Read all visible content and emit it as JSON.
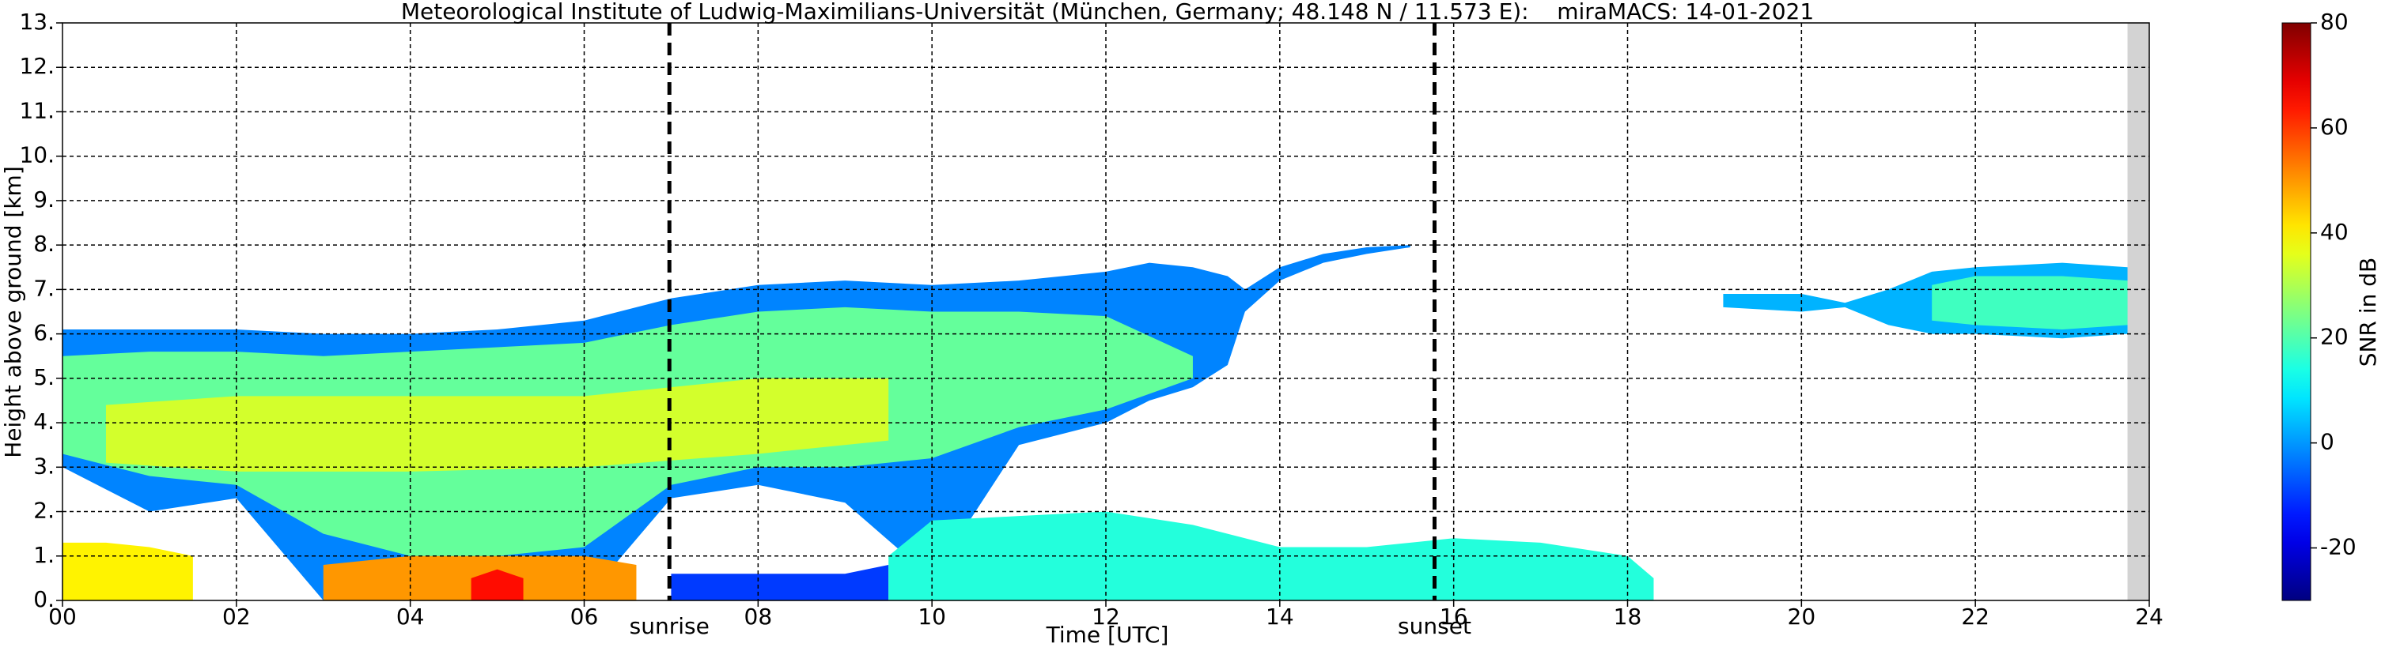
{
  "chart_data": {
    "type": "time-height",
    "title": "Meteorological Institute of Ludwig-Maximilians-Universität (München, Germany; 48.148 N / 11.573 E):    miraMACS: 14-01-2021",
    "x_label": "Time [UTC]",
    "y_label": "Height above ground [km]",
    "colorbar_label": "SNR in dB",
    "cmap": "jet",
    "clim": [
      -30,
      80
    ],
    "cticks": [
      -20,
      0,
      20,
      40,
      60,
      80
    ],
    "xlim": [
      0,
      24
    ],
    "xticks": [
      {
        "value": 0,
        "label": "00"
      },
      {
        "value": 2,
        "label": "02"
      },
      {
        "value": 4,
        "label": "04"
      },
      {
        "value": 6,
        "label": "06"
      },
      {
        "value": 8,
        "label": "08"
      },
      {
        "value": 10,
        "label": "10"
      },
      {
        "value": 12,
        "label": "12"
      },
      {
        "value": 14,
        "label": "14"
      },
      {
        "value": 16,
        "label": "16"
      },
      {
        "value": 18,
        "label": "18"
      },
      {
        "value": 20,
        "label": "20"
      },
      {
        "value": 22,
        "label": "22"
      },
      {
        "value": 24,
        "label": "24"
      }
    ],
    "ylim": [
      0,
      13
    ],
    "yticks": [
      {
        "value": 0,
        "label": "0."
      },
      {
        "value": 1,
        "label": "1."
      },
      {
        "value": 2,
        "label": "2."
      },
      {
        "value": 3,
        "label": "3."
      },
      {
        "value": 4,
        "label": "4."
      },
      {
        "value": 5,
        "label": "5."
      },
      {
        "value": 6,
        "label": "6."
      },
      {
        "value": 7,
        "label": "7."
      },
      {
        "value": 8,
        "label": "8."
      },
      {
        "value": 9,
        "label": "9."
      },
      {
        "value": 10,
        "label": "10."
      },
      {
        "value": 11,
        "label": "11."
      },
      {
        "value": 12,
        "label": "12."
      },
      {
        "value": 13,
        "label": "13."
      }
    ],
    "grid": true,
    "no_data": [
      23.75,
      24
    ],
    "events": [
      {
        "label": "sunrise",
        "x": 6.98
      },
      {
        "label": "sunset",
        "x": 15.78
      }
    ],
    "areas": [
      {
        "snr": -2,
        "x": [
          0,
          1,
          2,
          3,
          4,
          5,
          6,
          7,
          8,
          9,
          10,
          11,
          12,
          12.5,
          13,
          13.4,
          13.6,
          14,
          14.5,
          15,
          15.5
        ],
        "top": [
          6.1,
          6.1,
          6.1,
          6.0,
          6.0,
          6.1,
          6.3,
          6.8,
          7.1,
          7.2,
          7.1,
          7.2,
          7.4,
          7.6,
          7.5,
          7.3,
          7.0,
          7.5,
          7.8,
          7.95,
          8.0
        ],
        "base": [
          3.0,
          2.0,
          2.3,
          0,
          0,
          0,
          0,
          2.3,
          2.6,
          2.2,
          0.5,
          3.5,
          4.0,
          4.5,
          4.8,
          5.3,
          6.5,
          7.2,
          7.6,
          7.8,
          7.95
        ]
      },
      {
        "snr": 22,
        "x": [
          0,
          1,
          2,
          3,
          4,
          5,
          6,
          7,
          8,
          9,
          10,
          11,
          12,
          13
        ],
        "top": [
          5.5,
          5.6,
          5.6,
          5.5,
          5.6,
          5.7,
          5.8,
          6.2,
          6.5,
          6.6,
          6.5,
          6.5,
          6.4,
          5.5
        ],
        "base": [
          3.3,
          2.8,
          2.6,
          1.5,
          1.0,
          1.0,
          1.2,
          2.6,
          3.0,
          3.0,
          3.2,
          3.9,
          4.3,
          5.0
        ]
      },
      {
        "snr": 34,
        "x": [
          0.5,
          2,
          4,
          6,
          8,
          9.5
        ],
        "top": [
          4.4,
          4.6,
          4.6,
          4.6,
          5.0,
          5.0
        ],
        "base": [
          3.1,
          2.9,
          2.9,
          3.0,
          3.3,
          3.6
        ]
      },
      {
        "snr": 40,
        "x": [
          0,
          0.5,
          1,
          1.5
        ],
        "top": [
          1.3,
          1.3,
          1.2,
          1.0
        ],
        "base": [
          0,
          0,
          0,
          0
        ]
      },
      {
        "snr": 50,
        "x": [
          3,
          4,
          5,
          6,
          6.6
        ],
        "top": [
          0.8,
          1.0,
          1.0,
          1.0,
          0.8
        ],
        "base": [
          0,
          0,
          0,
          0,
          0
        ]
      },
      {
        "snr": 65,
        "x": [
          4.7,
          5.0,
          5.3
        ],
        "top": [
          0.5,
          0.7,
          0.5
        ],
        "base": [
          0,
          0,
          0
        ]
      },
      {
        "snr": -10,
        "x": [
          7,
          8,
          9,
          9.5
        ],
        "top": [
          0.6,
          0.6,
          0.6,
          0.8
        ],
        "base": [
          0,
          0,
          0,
          0
        ]
      },
      {
        "snr": 15,
        "x": [
          9.5,
          10,
          11,
          12,
          13,
          14,
          15,
          16,
          17,
          18,
          18.3
        ],
        "top": [
          1.0,
          1.8,
          1.9,
          2.0,
          1.7,
          1.2,
          1.2,
          1.4,
          1.3,
          1.0,
          0.5
        ],
        "base": [
          0,
          0,
          0,
          0,
          0,
          0,
          0,
          0,
          0,
          0,
          0
        ]
      },
      {
        "snr": 3,
        "x": [
          19.1,
          20,
          20.5,
          21,
          21.5,
          22,
          23,
          23.75
        ],
        "top": [
          6.9,
          6.9,
          6.7,
          7.0,
          7.4,
          7.5,
          7.6,
          7.5
        ],
        "base": [
          6.6,
          6.5,
          6.6,
          6.2,
          6.0,
          6.0,
          5.9,
          6.0
        ]
      },
      {
        "snr": 18,
        "x": [
          21.5,
          22,
          23,
          23.75
        ],
        "top": [
          7.1,
          7.3,
          7.3,
          7.2
        ],
        "base": [
          6.3,
          6.2,
          6.1,
          6.2
        ]
      }
    ]
  }
}
